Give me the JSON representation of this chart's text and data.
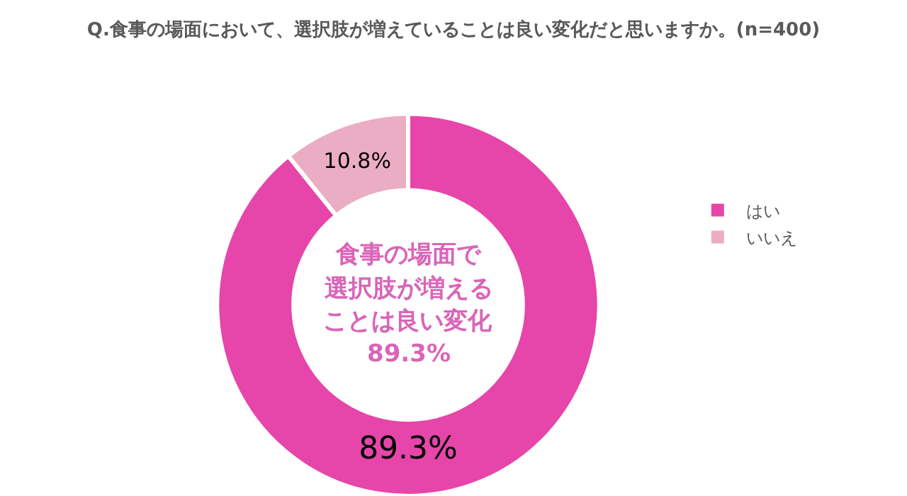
{
  "chart_data": {
    "type": "donut",
    "title": "Q.食事の場面において、選択肢が増えていることは良い変化だと思いますか。(n=400)",
    "categories": [
      "はい",
      "いいえ"
    ],
    "values": [
      89.3,
      10.8
    ],
    "value_labels": [
      "89.3%",
      "10.8%"
    ],
    "colors": [
      "#e645aa",
      "#ebadc3"
    ],
    "annotations": [
      "食事の場面で",
      "選択肢が増える",
      "ことは良い変化",
      "89.3%"
    ],
    "legend": "right"
  }
}
